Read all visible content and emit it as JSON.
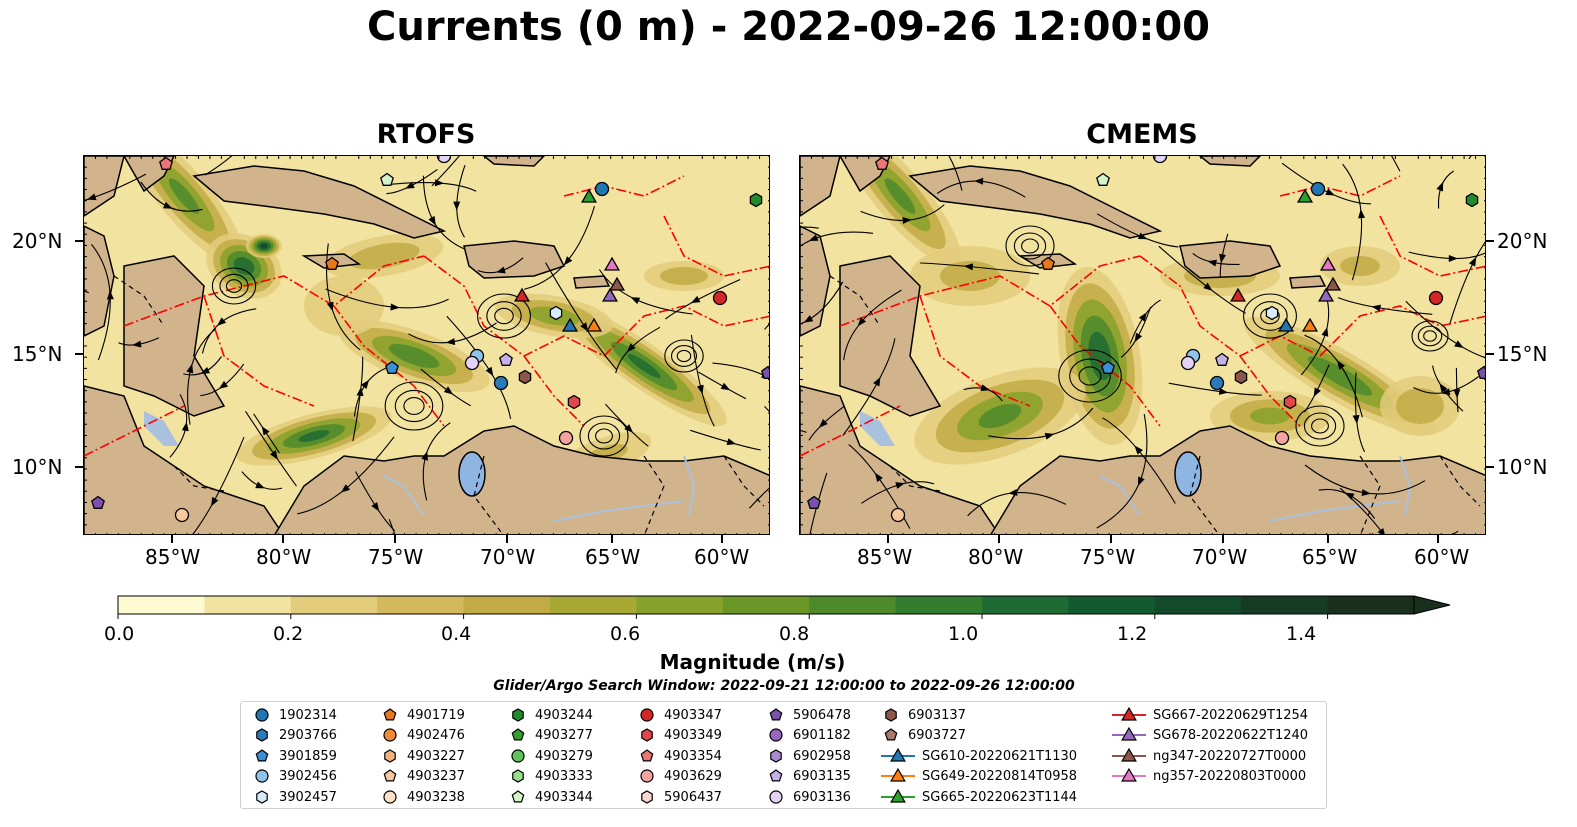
{
  "title": "Currents (0 m) - 2022-09-26 12:00:00",
  "panels": [
    {
      "title": "RTOFS"
    },
    {
      "title": "CMEMS"
    }
  ],
  "axes": {
    "x_ticks": [
      "85°W",
      "80°W",
      "75°W",
      "70°W",
      "65°W",
      "60°W"
    ],
    "y_ticks": [
      "20°N",
      "15°N",
      "10°N"
    ]
  },
  "colorbar": {
    "label": "Magnitude (m/s)",
    "ticks": [
      "0.0",
      "0.2",
      "0.4",
      "0.6",
      "0.8",
      "1.0",
      "1.2",
      "1.4"
    ],
    "range": [
      0,
      1.5
    ],
    "extend": "max",
    "colors": [
      "#fefbd2",
      "#f2e3a0",
      "#e3cc7c",
      "#d3b95c",
      "#c2ab45",
      "#a8a834",
      "#87a22a",
      "#6a9628",
      "#4d8a2a",
      "#327c2e",
      "#1e6b33",
      "#135a30",
      "#134a2a",
      "#163b24",
      "#19301e"
    ]
  },
  "search_window": "Glider/Argo Search Window: 2022-09-21 12:00:00 to 2022-09-26 12:00:00",
  "legend": {
    "columns": [
      [
        {
          "label": "1902314",
          "marker": "circle",
          "color": "#1f77b4"
        },
        {
          "label": "2903766",
          "marker": "hexagon",
          "color": "#2b7bba"
        },
        {
          "label": "3901859",
          "marker": "pentagon",
          "color": "#3a8fd6"
        },
        {
          "label": "3902456",
          "marker": "circle",
          "color": "#8fc3ea"
        },
        {
          "label": "3902457",
          "marker": "hexagon",
          "color": "#d6ecfb"
        }
      ],
      [
        {
          "label": "4901719",
          "marker": "pentagon",
          "color": "#e8781a"
        },
        {
          "label": "4902476",
          "marker": "circle",
          "color": "#f28b35"
        },
        {
          "label": "4903227",
          "marker": "hexagon",
          "color": "#f7b27a"
        },
        {
          "label": "4903237",
          "marker": "pentagon",
          "color": "#f9c79c"
        },
        {
          "label": "4903238",
          "marker": "circle",
          "color": "#fde0c5"
        }
      ],
      [
        {
          "label": "4903244",
          "marker": "hexagon",
          "color": "#238b2c"
        },
        {
          "label": "4903277",
          "marker": "pentagon",
          "color": "#33a02c"
        },
        {
          "label": "4903279",
          "marker": "circle",
          "color": "#5cc45a"
        },
        {
          "label": "4903333",
          "marker": "hexagon",
          "color": "#98df8a"
        },
        {
          "label": "4903344",
          "marker": "pentagon",
          "color": "#d3f5c8"
        }
      ],
      [
        {
          "label": "4903347",
          "marker": "circle",
          "color": "#d62728"
        },
        {
          "label": "4903349",
          "marker": "hexagon",
          "color": "#e0474a"
        },
        {
          "label": "4903354",
          "marker": "pentagon",
          "color": "#ec7676"
        },
        {
          "label": "4903629",
          "marker": "circle",
          "color": "#f5a3a0"
        },
        {
          "label": "5906437",
          "marker": "hexagon",
          "color": "#fbd5d2"
        }
      ],
      [
        {
          "label": "5906478",
          "marker": "pentagon",
          "color": "#7b52ab"
        },
        {
          "label": "6901182",
          "marker": "circle",
          "color": "#9467bd"
        },
        {
          "label": "6902958",
          "marker": "hexagon",
          "color": "#a98bd4"
        },
        {
          "label": "6903135",
          "marker": "pentagon",
          "color": "#c5b0ea"
        },
        {
          "label": "6903136",
          "marker": "circle",
          "color": "#e3d3f6"
        }
      ],
      [
        {
          "label": "6903137",
          "marker": "hexagon",
          "color": "#8c564b"
        },
        {
          "label": "6903727",
          "marker": "pentagon",
          "color": "#a8786c"
        },
        {
          "label": "SG610-20220621T1130",
          "marker": "triangle",
          "color": "#1f77b4"
        },
        {
          "label": "SG649-20220814T0958",
          "marker": "triangle",
          "color": "#ff7f0e"
        },
        {
          "label": "SG665-20220623T1144",
          "marker": "triangle",
          "color": "#2ca02c"
        }
      ],
      [
        {
          "label": "SG667-20220629T1254",
          "marker": "triangle",
          "color": "#d62728"
        },
        {
          "label": "SG678-20220622T1240",
          "marker": "triangle",
          "color": "#9467bd"
        },
        {
          "label": "ng347-20220727T0000",
          "marker": "triangle",
          "color": "#8c564b"
        },
        {
          "label": "ng357-20220803T0000",
          "marker": "triangle",
          "color": "#e377c2"
        }
      ]
    ]
  },
  "map_colors": {
    "land": "#d2b48c",
    "lakes": "#8fb6e2",
    "rivers": "#a9c1de",
    "eez_lines": "#ff0000"
  }
}
